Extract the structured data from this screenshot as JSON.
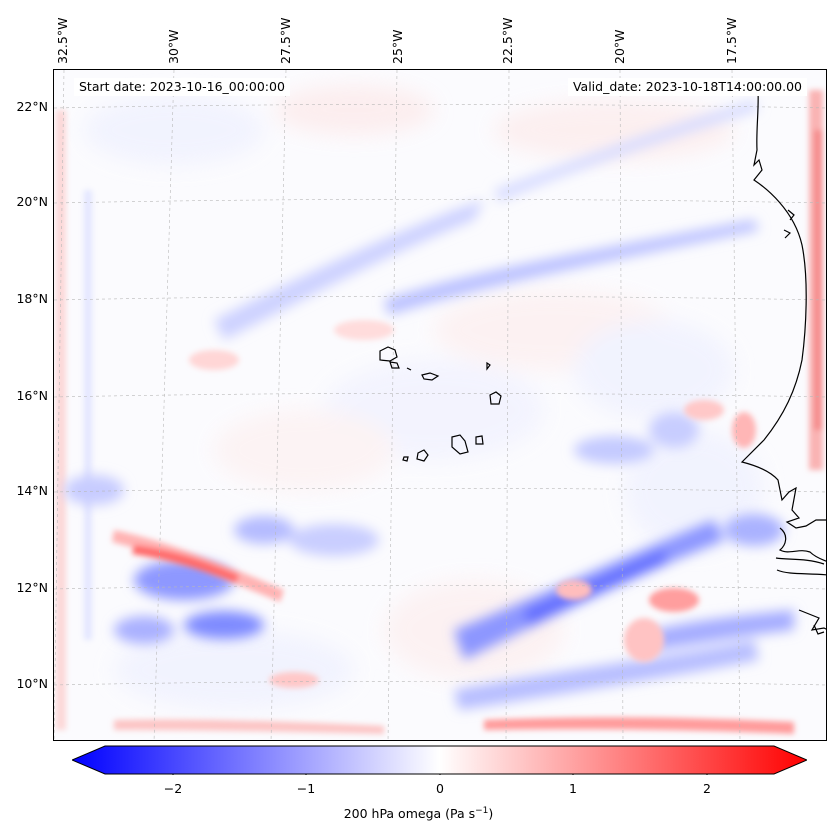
{
  "map": {
    "start_date_text": "Start date: 2023-10-16_00:00:00",
    "valid_date_text": "Valid_date: 2023-10-18T14:00:00.00",
    "lon_labels": [
      "32.5°W",
      "30°W",
      "27.5°W",
      "25°W",
      "22.5°W",
      "20°W",
      "17.5°W"
    ],
    "lat_labels": [
      "22°N",
      "20°N",
      "18°N",
      "16°N",
      "14°N",
      "12°N",
      "10°N"
    ],
    "field": "200 hPa omega",
    "colormap": "bwr"
  },
  "colorbar": {
    "ticks": [
      "−2",
      "−1",
      "0",
      "1",
      "2"
    ],
    "label_prefix": "200 hPa omega (Pa s",
    "label_exp": "−1",
    "label_suffix": ")",
    "min": -2.75,
    "max": 2.75,
    "colors": {
      "negative": "#0000ff",
      "zero": "#ffffff",
      "positive": "#ff0000"
    }
  }
}
